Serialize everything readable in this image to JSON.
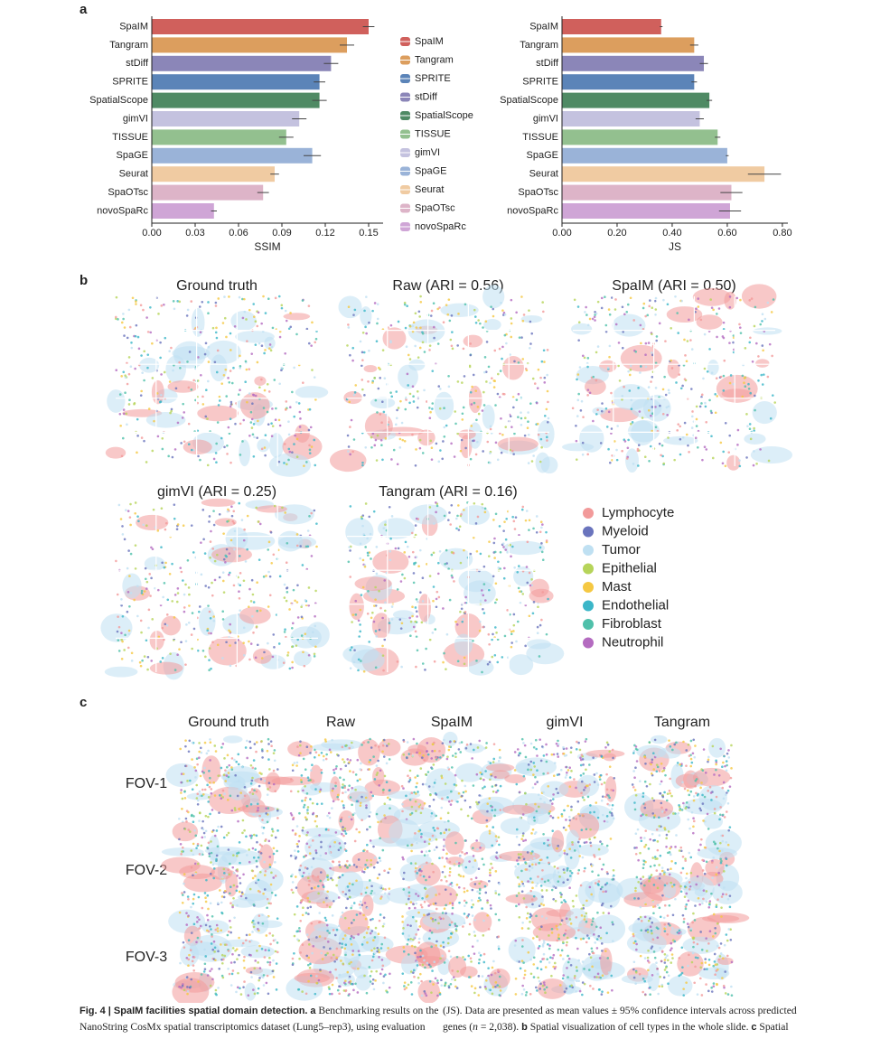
{
  "panels": [
    "a",
    "b",
    "c"
  ],
  "chart_data": [
    {
      "type": "bar",
      "orientation": "horizontal",
      "xlabel": "SSIM",
      "categories": [
        "SpaIM",
        "Tangram",
        "stDiff",
        "SPRITE",
        "SpatialScope",
        "gimVI",
        "TISSUE",
        "SpaGE",
        "Seurat",
        "SpaOTsc",
        "novoSpaRc"
      ],
      "values": [
        0.15,
        0.135,
        0.124,
        0.116,
        0.116,
        0.102,
        0.093,
        0.111,
        0.085,
        0.077,
        0.043
      ],
      "errors": [
        0.004,
        0.005,
        0.005,
        0.004,
        0.005,
        0.005,
        0.005,
        0.006,
        0.003,
        0.004,
        0.002
      ],
      "colors": [
        "#d0605c",
        "#dc9e5e",
        "#8b86b8",
        "#5b84b8",
        "#4f8a64",
        "#c4c2df",
        "#93c08f",
        "#9ab3d8",
        "#f0cba2",
        "#ddb4c8",
        "#cfa5d6"
      ],
      "xlim": [
        0,
        0.16
      ],
      "xticks": [
        {
          "value": 0,
          "label": "0.00"
        },
        0.03,
        0.06,
        0.09,
        0.12,
        0.15
      ]
    },
    {
      "type": "bar",
      "orientation": "horizontal",
      "xlabel": "JS",
      "categories": [
        "SpaIM",
        "Tangram",
        "stDiff",
        "SPRITE",
        "SpatialScope",
        "gimVI",
        "TISSUE",
        "SpaGE",
        "Seurat",
        "SpaOTsc",
        "novoSpaRc"
      ],
      "values": [
        0.36,
        0.48,
        0.515,
        0.48,
        0.535,
        0.5,
        0.565,
        0.6,
        0.735,
        0.615,
        0.61
      ],
      "errors": [
        0.005,
        0.015,
        0.015,
        0.01,
        0.01,
        0.015,
        0.01,
        0.005,
        0.06,
        0.04,
        0.04
      ],
      "colors": [
        "#d0605c",
        "#dc9e5e",
        "#8b86b8",
        "#5b84b8",
        "#4f8a64",
        "#c4c2df",
        "#93c08f",
        "#9ab3d8",
        "#f0cba2",
        "#ddb4c8",
        "#cfa5d6"
      ],
      "xlim": [
        0,
        0.82
      ],
      "xticks": [
        {
          "value": 0,
          "label": "0.00"
        },
        {
          "value": 0.2,
          "label": "0.20"
        },
        {
          "value": 0.4,
          "label": "0.40"
        },
        {
          "value": 0.6,
          "label": "0.60"
        },
        {
          "value": 0.8,
          "label": "0.80"
        }
      ]
    }
  ],
  "method_legend": {
    "items": [
      {
        "name": "SpaIM",
        "color": "#d0605c"
      },
      {
        "name": "Tangram",
        "color": "#dc9e5e"
      },
      {
        "name": "SPRITE",
        "color": "#5b84b8"
      },
      {
        "name": "stDiff",
        "color": "#8b86b8"
      },
      {
        "name": "SpatialScope",
        "color": "#4f8a64"
      },
      {
        "name": "TISSUE",
        "color": "#93c08f"
      },
      {
        "name": "gimVI",
        "color": "#c4c2df"
      },
      {
        "name": "SpaGE",
        "color": "#9ab3d8"
      },
      {
        "name": "Seurat",
        "color": "#f0cba2"
      },
      {
        "name": "SpaOTsc",
        "color": "#ddb4c8"
      },
      {
        "name": "novoSpaRc",
        "color": "#cfa5d6"
      }
    ]
  },
  "spatial_maps": {
    "titles": [
      "Ground truth",
      "Raw (ARI = 0.56)",
      "SpaIM (ARI = 0.50)",
      "gimVI (ARI = 0.25)",
      "Tangram (ARI = 0.16)"
    ]
  },
  "cell_types": {
    "items": [
      {
        "name": "Lymphocyte",
        "color": "#f29a9a"
      },
      {
        "name": "Myeloid",
        "color": "#6a74bd"
      },
      {
        "name": "Tumor",
        "color": "#bfe0f2"
      },
      {
        "name": "Epithelial",
        "color": "#b6d45a"
      },
      {
        "name": "Mast",
        "color": "#f5c842"
      },
      {
        "name": "Endothelial",
        "color": "#3bb6c8"
      },
      {
        "name": "Fibroblast",
        "color": "#4fc0aa"
      },
      {
        "name": "Neutrophil",
        "color": "#b46bc0"
      }
    ]
  },
  "fov_grid": {
    "columns": [
      "Ground truth",
      "Raw",
      "SpaIM",
      "gimVI",
      "Tangram"
    ],
    "rows": [
      "FOV-1",
      "FOV-2",
      "FOV-3"
    ]
  },
  "caption": {
    "left_1": [
      "Fig. 4 | SpaIM facilities spatial domain detection.",
      "a",
      "Benchmarking results on the"
    ],
    "left_2": [
      "NanoString CosMx spatial transcriptomics dataset (Lung5–rep3), using evaluation"
    ],
    "right_1": [
      "(JS). Data are presented as mean values ± 95% confidence intervals across predicted"
    ],
    "right_2": [
      "genes (",
      "n",
      " = 2,038). ",
      "b",
      " Spatial visualization of cell types in the whole slide. ",
      "c",
      " Spatial"
    ]
  }
}
